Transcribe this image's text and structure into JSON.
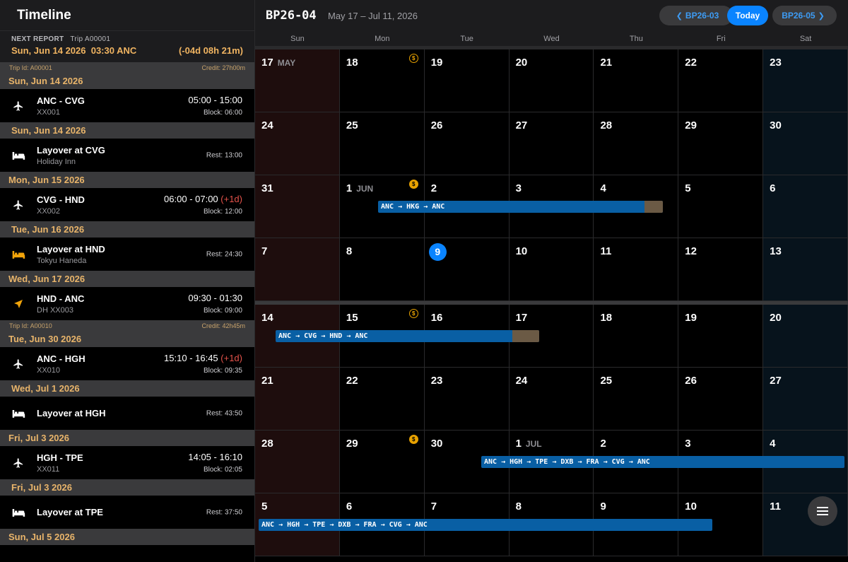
{
  "timeline": {
    "title": "Timeline",
    "next_report": {
      "label": "NEXT REPORT",
      "trip": "Trip A00001",
      "datetime": "Sun, Jun 14 2026  03:30 ANC",
      "countdown": "(-04d 08h 21m)"
    },
    "trips": [
      {
        "trip_id": "Trip Id: A00001",
        "credit": "Credit: 27h00m",
        "days": [
          {
            "date": "Sun, Jun 14 2026",
            "event": {
              "type": "flight",
              "title": "ANC - CVG",
              "sub": "XX001",
              "time": "05:00 - 15:00",
              "plus": "",
              "block": "Block: 06:00"
            }
          },
          {
            "date": "Sun, Jun 14 2026",
            "event": {
              "type": "layover",
              "title": "Layover at CVG",
              "sub": "Holiday Inn",
              "rest": "Rest: 13:00"
            }
          },
          {
            "date": "Mon, Jun 15 2026",
            "event": {
              "type": "flight",
              "title": "CVG - HND",
              "sub": "XX002",
              "time": "06:00 - 07:00 ",
              "plus": "(+1d)",
              "block": "Block: 12:00"
            }
          },
          {
            "date": "Tue, Jun 16 2026",
            "event": {
              "type": "layover-orange",
              "title": "Layover at HND",
              "sub": "Tokyu Haneda",
              "rest": "Rest: 24:30"
            }
          },
          {
            "date": "Wed, Jun 17 2026",
            "event": {
              "type": "deadhead",
              "title": "HND - ANC",
              "sub": "DH XX003",
              "time": "09:30 - 01:30",
              "plus": "",
              "block": "Block: 09:00"
            }
          }
        ]
      },
      {
        "trip_id": "Trip Id: A00010",
        "credit": "Credit: 42h45m",
        "days": [
          {
            "date": "Tue, Jun 30 2026",
            "event": {
              "type": "flight",
              "title": "ANC - HGH",
              "sub": "XX010",
              "time": "15:10 - 16:45 ",
              "plus": "(+1d)",
              "block": "Block: 09:35"
            }
          },
          {
            "date": "Wed, Jul 1 2026",
            "event": {
              "type": "layover",
              "title": "Layover at HGH",
              "sub": "",
              "rest": "Rest: 43:50"
            }
          },
          {
            "date": "Fri, Jul 3 2026",
            "event": {
              "type": "flight",
              "title": "HGH - TPE",
              "sub": "XX011",
              "time": "14:05 - 16:10",
              "plus": "",
              "block": "Block: 02:05"
            }
          },
          {
            "date": "Fri, Jul 3 2026",
            "event": {
              "type": "layover",
              "title": "Layover at TPE",
              "sub": "",
              "rest": "Rest: 37:50"
            }
          }
        ]
      }
    ],
    "trailing_day": "Sun, Jul 5 2026"
  },
  "calendar": {
    "title": "BP26-04",
    "range": "May 17 – Jul 11, 2026",
    "prev_label": "BP26-03",
    "today_label": "Today",
    "next_label": "BP26-05",
    "weekdays": [
      "Sun",
      "Mon",
      "Tue",
      "Wed",
      "Thu",
      "Fri",
      "Sat"
    ],
    "weeks": [
      [
        "17",
        "18",
        "19",
        "20",
        "21",
        "22",
        "23"
      ],
      [
        "24",
        "25",
        "26",
        "27",
        "28",
        "29",
        "30"
      ],
      [
        "31",
        "1",
        "2",
        "3",
        "4",
        "5",
        "6"
      ],
      [
        "7",
        "8",
        "9",
        "10",
        "11",
        "12",
        "13"
      ],
      [
        "14",
        "15",
        "16",
        "17",
        "18",
        "19",
        "20"
      ],
      [
        "21",
        "22",
        "23",
        "24",
        "25",
        "26",
        "27"
      ],
      [
        "28",
        "29",
        "30",
        "1",
        "2",
        "3",
        "4"
      ],
      [
        "5",
        "6",
        "7",
        "8",
        "9",
        "10",
        "11"
      ]
    ],
    "month_tags": {
      "0-0": "MAY",
      "2-1": "JUN",
      "6-3": "JUL"
    },
    "today_cell": "3-2",
    "pay_markers": {
      "0-1": "outline",
      "2-1": "filled",
      "4-1": "outline",
      "6-1": "filled"
    },
    "coin_symbol": "$",
    "trip_bars": [
      {
        "label": "ANC → HKG → ANC",
        "week": 2
      },
      {
        "label": "ANC → CVG → HND → ANC",
        "week": 4
      },
      {
        "label": "ANC → HGH → TPE → DXB → FRA → CVG → ANC",
        "week": 6
      },
      {
        "label": "ANC → HGH → TPE → DXB → FRA → CVG → ANC",
        "week": 7
      }
    ],
    "colors": {
      "accent": "#0a84ff",
      "bar": "#095fa4",
      "gold": "#e8b46a",
      "pay": "#e8a200"
    }
  }
}
